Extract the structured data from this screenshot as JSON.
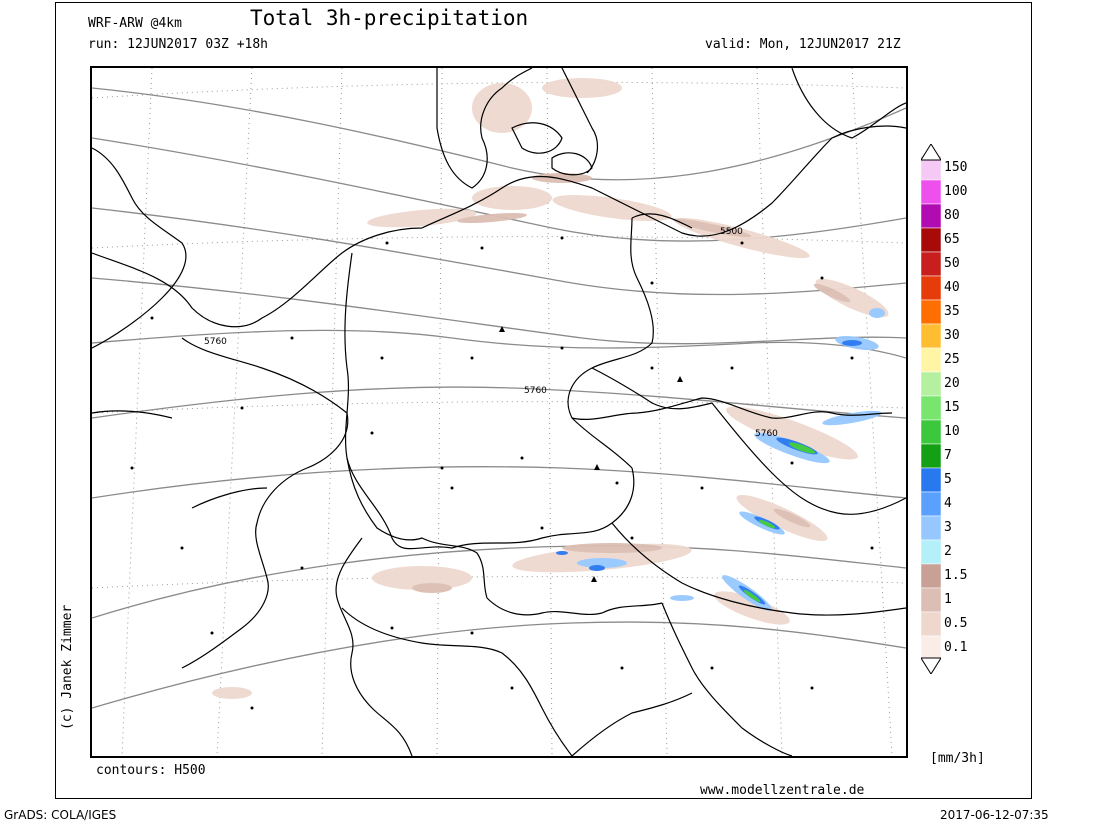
{
  "header": {
    "model": "WRF-ARW @4km",
    "title": "Total 3h-precipitation",
    "run": "run: 12JUN2017 03Z +18h",
    "valid": "valid: Mon, 12JUN2017 21Z"
  },
  "footer": {
    "contours": "contours: H500",
    "website": "www.modellzentrale.de",
    "grads": "GrADS: COLA/IGES",
    "timestamp": "2017-06-12-07:35",
    "unit": "[mm/3h]",
    "credit": "(c) Janek Zimmer"
  },
  "contour_labels": [
    "5500",
    "5760",
    "5760",
    "5760"
  ],
  "legend": {
    "levels": [
      {
        "label": "150",
        "color": "#f5c8f5"
      },
      {
        "label": "100",
        "color": "#ee50ee"
      },
      {
        "label": "80",
        "color": "#b10cb1"
      },
      {
        "label": "65",
        "color": "#a80a0a"
      },
      {
        "label": "50",
        "color": "#c81e1e"
      },
      {
        "label": "40",
        "color": "#e63c0a"
      },
      {
        "label": "35",
        "color": "#ff6e00"
      },
      {
        "label": "30",
        "color": "#ffbe32"
      },
      {
        "label": "25",
        "color": "#fff5a5"
      },
      {
        "label": "20",
        "color": "#b4f0a0"
      },
      {
        "label": "15",
        "color": "#78e66e"
      },
      {
        "label": "10",
        "color": "#3cc83c"
      },
      {
        "label": "7",
        "color": "#14a014"
      },
      {
        "label": "5",
        "color": "#2878f0"
      },
      {
        "label": "4",
        "color": "#5aa0ff"
      },
      {
        "label": "3",
        "color": "#96c8ff"
      },
      {
        "label": "2",
        "color": "#b4f0fa"
      },
      {
        "label": "1.5",
        "color": "#c8a096"
      },
      {
        "label": "1",
        "color": "#dcbeb4"
      },
      {
        "label": "0.5",
        "color": "#eed8ce"
      },
      {
        "label": "0.1",
        "color": "#faece6"
      }
    ]
  }
}
